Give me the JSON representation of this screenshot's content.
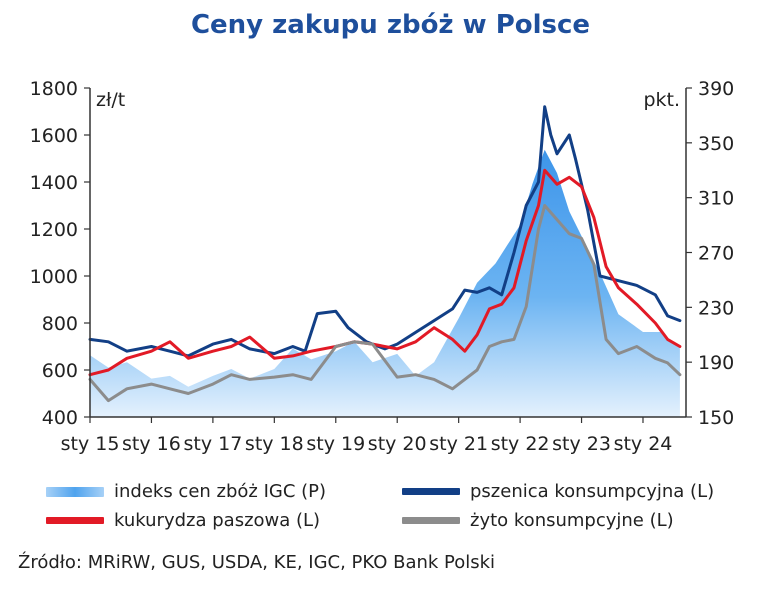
{
  "title": "Ceny zakupu zbóż w Polsce",
  "source": "Źródło: MRiRW, GUS, USDA, KE, IGC, PKO Bank Polski",
  "chart_data": {
    "type": "line",
    "title": "Ceny zakupu zbóż w Polsce",
    "left_axis": {
      "unit": "zł/t",
      "min": 400,
      "max": 1800,
      "ticks": [
        400,
        600,
        800,
        1000,
        1200,
        1400,
        1600,
        1800
      ]
    },
    "right_axis": {
      "unit": "pkt.",
      "min": 150,
      "max": 390,
      "ticks": [
        150,
        190,
        230,
        270,
        310,
        350,
        390
      ]
    },
    "x_range": [
      2015.0,
      2024.7
    ],
    "x_ticks": [
      {
        "value": 2015,
        "label": "sty 15"
      },
      {
        "value": 2016,
        "label": "sty 16"
      },
      {
        "value": 2017,
        "label": "sty 17"
      },
      {
        "value": 2018,
        "label": "sty 18"
      },
      {
        "value": 2019,
        "label": "sty 19"
      },
      {
        "value": 2020,
        "label": "sty 20"
      },
      {
        "value": 2021,
        "label": "sty 21"
      },
      {
        "value": 2022,
        "label": "sty 22"
      },
      {
        "value": 2023,
        "label": "sty 23"
      },
      {
        "value": 2024,
        "label": "sty 24"
      }
    ],
    "legend_position": "bottom",
    "series": [
      {
        "name": "indeks cen zbóż IGC (P)",
        "axis": "right",
        "style": "area",
        "color": "#4fa3ee",
        "x": [
          2015.0,
          2015.3,
          2015.6,
          2016.0,
          2016.3,
          2016.6,
          2017.0,
          2017.3,
          2017.6,
          2018.0,
          2018.3,
          2018.6,
          2019.0,
          2019.3,
          2019.6,
          2020.0,
          2020.3,
          2020.6,
          2021.0,
          2021.3,
          2021.6,
          2022.0,
          2022.2,
          2022.4,
          2022.6,
          2022.8,
          2023.0,
          2023.3,
          2023.6,
          2024.0,
          2024.3,
          2024.6
        ],
        "values": [
          195,
          186,
          190,
          178,
          180,
          172,
          180,
          185,
          178,
          185,
          200,
          192,
          198,
          205,
          190,
          196,
          180,
          190,
          222,
          248,
          262,
          290,
          320,
          345,
          328,
          300,
          282,
          255,
          225,
          212,
          212,
          200
        ]
      },
      {
        "name": "pszenica konsumpcyjna (L)",
        "axis": "left",
        "style": "line",
        "color": "#123f86",
        "x": [
          2015.0,
          2015.3,
          2015.6,
          2016.0,
          2016.3,
          2016.6,
          2017.0,
          2017.3,
          2017.6,
          2018.0,
          2018.3,
          2018.5,
          2018.7,
          2019.0,
          2019.2,
          2019.5,
          2019.8,
          2020.0,
          2020.3,
          2020.6,
          2020.9,
          2021.1,
          2021.3,
          2021.5,
          2021.7,
          2021.9,
          2022.1,
          2022.3,
          2022.4,
          2022.5,
          2022.6,
          2022.8,
          2022.9,
          2023.1,
          2023.3,
          2023.6,
          2023.9,
          2024.2,
          2024.4,
          2024.6
        ],
        "values": [
          730,
          720,
          680,
          700,
          680,
          660,
          710,
          730,
          690,
          670,
          700,
          680,
          840,
          850,
          780,
          720,
          690,
          710,
          760,
          810,
          860,
          940,
          930,
          950,
          920,
          1100,
          1300,
          1400,
          1720,
          1600,
          1520,
          1600,
          1500,
          1280,
          1000,
          980,
          960,
          920,
          830,
          810
        ]
      },
      {
        "name": "kukurydza paszowa (L)",
        "axis": "left",
        "style": "line",
        "color": "#e21a26",
        "x": [
          2015.0,
          2015.3,
          2015.6,
          2016.0,
          2016.3,
          2016.6,
          2017.0,
          2017.3,
          2017.6,
          2018.0,
          2018.3,
          2018.6,
          2019.0,
          2019.3,
          2019.6,
          2020.0,
          2020.3,
          2020.6,
          2020.9,
          2021.1,
          2021.3,
          2021.5,
          2021.7,
          2021.9,
          2022.1,
          2022.3,
          2022.4,
          2022.6,
          2022.8,
          2023.0,
          2023.2,
          2023.4,
          2023.6,
          2023.9,
          2024.2,
          2024.4,
          2024.6
        ],
        "values": [
          580,
          600,
          650,
          680,
          720,
          650,
          680,
          700,
          740,
          650,
          660,
          680,
          700,
          720,
          710,
          690,
          720,
          780,
          730,
          680,
          750,
          860,
          880,
          950,
          1150,
          1300,
          1450,
          1390,
          1420,
          1380,
          1250,
          1040,
          950,
          880,
          800,
          730,
          700
        ]
      },
      {
        "name": "żyto konsumpcyjne (L)",
        "axis": "left",
        "style": "line",
        "color": "#8c8c8c",
        "x": [
          2015.0,
          2015.3,
          2015.6,
          2016.0,
          2016.3,
          2016.6,
          2017.0,
          2017.3,
          2017.6,
          2018.0,
          2018.3,
          2018.6,
          2019.0,
          2019.3,
          2019.6,
          2020.0,
          2020.3,
          2020.6,
          2020.9,
          2021.1,
          2021.3,
          2021.5,
          2021.7,
          2021.9,
          2022.1,
          2022.3,
          2022.4,
          2022.6,
          2022.8,
          2023.0,
          2023.2,
          2023.4,
          2023.6,
          2023.9,
          2024.2,
          2024.4,
          2024.6
        ],
        "values": [
          560,
          470,
          520,
          540,
          520,
          500,
          540,
          580,
          560,
          570,
          580,
          560,
          700,
          720,
          710,
          570,
          580,
          560,
          520,
          560,
          600,
          700,
          720,
          730,
          870,
          1200,
          1300,
          1240,
          1180,
          1160,
          1050,
          730,
          670,
          700,
          650,
          630,
          580
        ]
      }
    ]
  }
}
